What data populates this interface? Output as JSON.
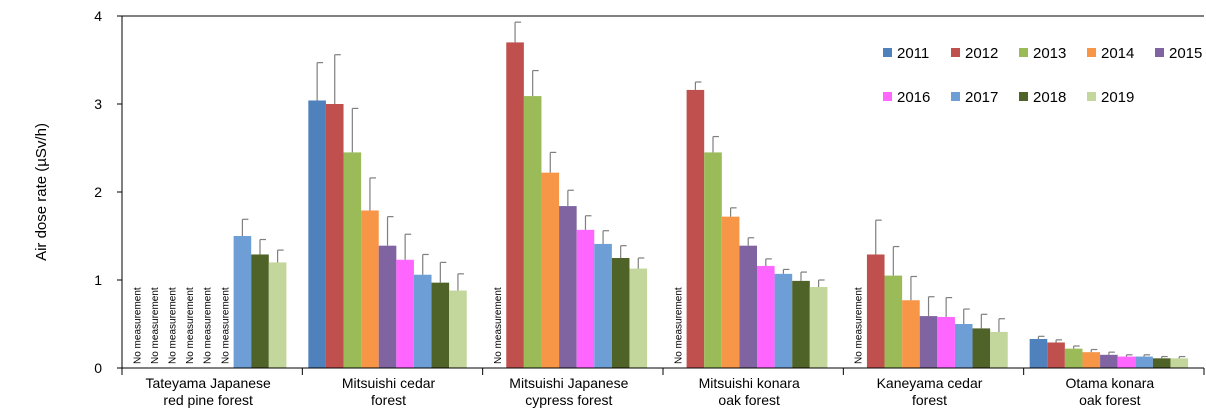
{
  "chart_data": {
    "type": "bar",
    "ylabel": "Air dose rate (µSv/h)",
    "ylim": [
      0,
      4
    ],
    "yticks": [
      "0",
      "1",
      "2",
      "3",
      "4"
    ],
    "grid": false,
    "legend_placement": "top-right",
    "no_measurement_label": "No measurement",
    "categories": [
      [
        "Tateyama Japanese",
        "red pine forest"
      ],
      [
        "Mitsuishi cedar",
        "forest"
      ],
      [
        "Mitsuishi Japanese",
        "cypress forest"
      ],
      [
        "Mitsuishi konara",
        "oak forest"
      ],
      [
        "Kaneyama cedar",
        "forest"
      ],
      [
        "Otama konara",
        "oak forest"
      ]
    ],
    "series": [
      {
        "name": "2011",
        "color": "#4f81bd",
        "values": [
          null,
          3.04,
          null,
          null,
          null,
          0.33
        ],
        "errors": [
          null,
          0.43,
          null,
          null,
          null,
          0.03
        ]
      },
      {
        "name": "2012",
        "color": "#c0504d",
        "values": [
          null,
          3.0,
          3.7,
          3.16,
          1.29,
          0.29
        ],
        "errors": [
          null,
          0.56,
          0.23,
          0.09,
          0.39,
          0.03
        ]
      },
      {
        "name": "2013",
        "color": "#9bbb59",
        "values": [
          null,
          2.45,
          3.09,
          2.45,
          1.05,
          0.22
        ],
        "errors": [
          null,
          0.5,
          0.29,
          0.18,
          0.33,
          0.03
        ]
      },
      {
        "name": "2014",
        "color": "#f79646",
        "values": [
          null,
          1.79,
          2.22,
          1.72,
          0.77,
          0.18
        ],
        "errors": [
          null,
          0.37,
          0.23,
          0.1,
          0.27,
          0.03
        ]
      },
      {
        "name": "2015",
        "color": "#8064a2",
        "values": [
          null,
          1.39,
          1.84,
          1.39,
          0.59,
          0.15
        ],
        "errors": [
          null,
          0.33,
          0.18,
          0.09,
          0.22,
          0.03
        ]
      },
      {
        "name": "2016",
        "color": "#ff66ff",
        "values": [
          null,
          1.23,
          1.57,
          1.16,
          0.58,
          0.13
        ],
        "errors": [
          null,
          0.29,
          0.16,
          0.08,
          0.22,
          0.02
        ]
      },
      {
        "name": "2017",
        "color": "#6e9ed6",
        "values": [
          1.5,
          1.06,
          1.41,
          1.07,
          0.5,
          0.13
        ],
        "errors": [
          0.19,
          0.23,
          0.15,
          0.05,
          0.17,
          0.02
        ]
      },
      {
        "name": "2018",
        "color": "#4f6228",
        "values": [
          1.29,
          0.97,
          1.25,
          0.99,
          0.45,
          0.11
        ],
        "errors": [
          0.17,
          0.23,
          0.14,
          0.1,
          0.16,
          0.02
        ]
      },
      {
        "name": "2019",
        "color": "#c3d69b",
        "values": [
          1.2,
          0.88,
          1.13,
          0.92,
          0.41,
          0.11
        ],
        "errors": [
          0.14,
          0.19,
          0.12,
          0.08,
          0.15,
          0.02
        ]
      }
    ]
  }
}
